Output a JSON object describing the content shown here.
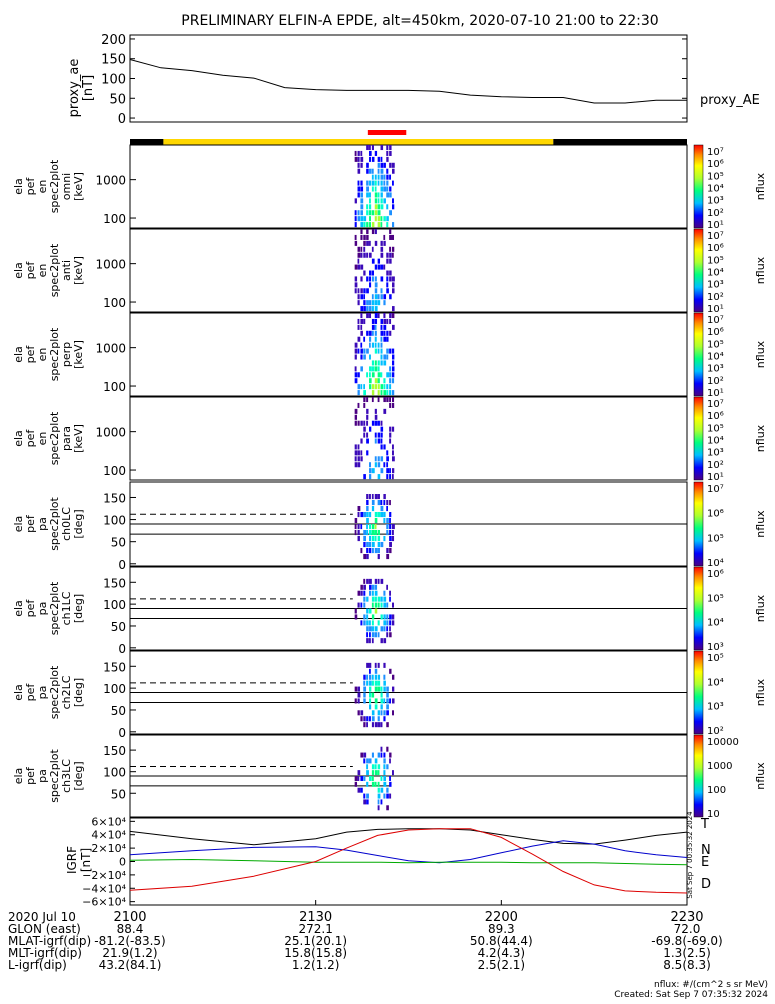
{
  "title": "PRELIMINARY ELFIN-A EPDE, alt=450km, 2020-07-10 21:00 to 22:30",
  "footer": {
    "units": "nflux: #/(cm^2 s sr MeV)",
    "created": "Created: Sat Sep  7 07:35:32 2024"
  },
  "side_stamp": "Sat Sep  7 00:35:32 2024",
  "chart_data": [
    {
      "type": "line",
      "panel": "proxy_ae",
      "ylabel": [
        "proxy_ae",
        "[nT]"
      ],
      "legend": "proxy_AE",
      "yticks": [
        "200",
        "150",
        "100",
        "50",
        "0"
      ],
      "ylim": [
        -10,
        210
      ],
      "x_minutes": [
        0,
        5,
        10,
        15,
        20,
        25,
        30,
        35,
        40,
        45,
        50,
        55,
        60,
        65,
        70,
        75,
        80,
        85,
        90
      ],
      "values": [
        148,
        127,
        120,
        108,
        101,
        77,
        72,
        70,
        70,
        70,
        68,
        58,
        54,
        52,
        52,
        38,
        38,
        45,
        45
      ]
    },
    {
      "type": "bar",
      "panel": "science_zone_bar",
      "segments": [
        {
          "color": "#000000",
          "from": 0,
          "to": 6
        },
        {
          "color": "#ffd700",
          "from": 6,
          "to": 76
        },
        {
          "color": "#000000",
          "from": 76,
          "to": 100
        }
      ],
      "marker": {
        "color": "#ff0000",
        "from": 42.7,
        "to": 49.6
      }
    },
    {
      "type": "heatmap",
      "panel": "spec_omni",
      "ylabel": [
        "ela",
        "pef",
        "en",
        "spec2plot",
        "omni",
        "[keV]"
      ],
      "yticks": [
        "1000",
        "100"
      ],
      "cbar_label": "nflux",
      "cbar_ticks": [
        "10⁷",
        "10⁶",
        "10⁵",
        "10⁴",
        "10³",
        "10²",
        "10¹"
      ]
    },
    {
      "type": "heatmap",
      "panel": "spec_anti",
      "ylabel": [
        "ela",
        "pef",
        "en",
        "spec2plot",
        "anti",
        "[keV]"
      ],
      "yticks": [
        "1000",
        "100"
      ],
      "cbar_label": "nflux",
      "cbar_ticks": [
        "10⁷",
        "10⁶",
        "10⁵",
        "10⁴",
        "10³",
        "10²",
        "10¹"
      ]
    },
    {
      "type": "heatmap",
      "panel": "spec_perp",
      "ylabel": [
        "ela",
        "pef",
        "en",
        "spec2plot",
        "perp",
        "[keV]"
      ],
      "yticks": [
        "1000",
        "100"
      ],
      "cbar_label": "nflux",
      "cbar_ticks": [
        "10⁷",
        "10⁶",
        "10⁵",
        "10⁴",
        "10³",
        "10²",
        "10¹"
      ]
    },
    {
      "type": "heatmap",
      "panel": "spec_para",
      "ylabel": [
        "ela",
        "pef",
        "en",
        "spec2plot",
        "para",
        "[keV]"
      ],
      "yticks": [
        "1000",
        "100"
      ],
      "cbar_label": "nflux",
      "cbar_ticks": [
        "10⁷",
        "10⁶",
        "10⁵",
        "10⁴",
        "10³",
        "10²",
        "10¹"
      ]
    },
    {
      "type": "heatmap",
      "panel": "pa_ch0LC",
      "ylabel": [
        "ela",
        "pef",
        "pa",
        "spec2plot",
        "ch0LC",
        "[deg]"
      ],
      "yticks": [
        "150",
        "100",
        "50",
        "0"
      ],
      "cbar_label": "nflux",
      "cbar_ticks": [
        "10⁷",
        "10⁶",
        "10⁵",
        "10⁴"
      ]
    },
    {
      "type": "heatmap",
      "panel": "pa_ch1LC",
      "ylabel": [
        "ela",
        "pef",
        "pa",
        "spec2plot",
        "ch1LC",
        "[deg]"
      ],
      "yticks": [
        "150",
        "100",
        "50",
        "0"
      ],
      "cbar_label": "nflux",
      "cbar_ticks": [
        "10⁶",
        "10⁵",
        "10⁴",
        "10³"
      ]
    },
    {
      "type": "heatmap",
      "panel": "pa_ch2LC",
      "ylabel": [
        "ela",
        "pef",
        "pa",
        "spec2plot",
        "ch2LC",
        "[deg]"
      ],
      "yticks": [
        "150",
        "100",
        "50",
        "0"
      ],
      "cbar_label": "nflux",
      "cbar_ticks": [
        "10⁵",
        "10⁴",
        "10³",
        "10²"
      ]
    },
    {
      "type": "heatmap",
      "panel": "pa_ch3LC",
      "ylabel": [
        "ela",
        "pef",
        "pa",
        "spec2plot",
        "ch3LC",
        "[deg]"
      ],
      "yticks": [
        "150",
        "100",
        "50"
      ],
      "cbar_label": "nflux",
      "cbar_ticks": [
        "10000",
        "1000",
        "100",
        "10"
      ]
    },
    {
      "type": "line",
      "panel": "igrf",
      "ylabel": [
        "IGRF",
        "[nT]"
      ],
      "yticks": [
        "6×10⁴",
        "4×10⁴",
        "2×10⁴",
        "0",
        "−2×10⁴",
        "−4×10⁴",
        "−6×10⁴"
      ],
      "ylim": [
        -65000,
        65000
      ],
      "legend": [
        "T",
        "N",
        "E",
        "D"
      ],
      "x_minutes": [
        0,
        10,
        20,
        30,
        35,
        40,
        45,
        50,
        55,
        60,
        65,
        70,
        75,
        80,
        85,
        90
      ],
      "series": [
        {
          "name": "T",
          "color": "#000000",
          "values": [
            45000,
            34000,
            25000,
            34000,
            44000,
            48000,
            49000,
            49000,
            47000,
            40000,
            33000,
            27000,
            26000,
            32000,
            39000,
            44000
          ]
        },
        {
          "name": "N",
          "color": "#0000cc",
          "values": [
            10000,
            16000,
            21000,
            22000,
            17000,
            9000,
            1000,
            -2000,
            3000,
            13000,
            23000,
            31000,
            26000,
            16000,
            10000,
            6000
          ]
        },
        {
          "name": "E",
          "color": "#00aa00",
          "values": [
            2000,
            3000,
            1000,
            -1000,
            -1000,
            -1000,
            -2000,
            -1000,
            -1000,
            -1000,
            -2000,
            -2000,
            -2000,
            -3000,
            -4000,
            -5000
          ]
        },
        {
          "name": "D",
          "color": "#dd0000",
          "values": [
            -43000,
            -37000,
            -22000,
            0,
            20000,
            39000,
            47000,
            49000,
            49000,
            36000,
            11000,
            -15000,
            -35000,
            -44000,
            -46000,
            -47000
          ]
        }
      ]
    }
  ],
  "x_axis": {
    "ticks": [
      "2100",
      "2130",
      "2200",
      "2230"
    ],
    "tick_minutes": [
      0,
      30,
      60,
      90
    ]
  },
  "ephemeris": {
    "rows": [
      {
        "label": "2020 Jul 10",
        "values": [
          "",
          "",
          "",
          ""
        ]
      },
      {
        "label": "GLON (east)",
        "values": [
          "88.4",
          "272.1",
          "89.3",
          "72.0"
        ]
      },
      {
        "label": "MLAT-igrf(dip)",
        "values": [
          "-81.2(-83.5)",
          "25.1(20.1)",
          "50.8(44.4)",
          "-69.8(-69.0)"
        ]
      },
      {
        "label": "MLT-igrf(dip)",
        "values": [
          "21.9(1.2)",
          "15.8(15.8)",
          "4.2(4.3)",
          "1.3(2.5)"
        ]
      },
      {
        "label": "L-igrf(dip)",
        "values": [
          "43.2(84.1)",
          "1.2(1.2)",
          "2.5(2.1)",
          "8.5(8.3)"
        ]
      }
    ]
  }
}
